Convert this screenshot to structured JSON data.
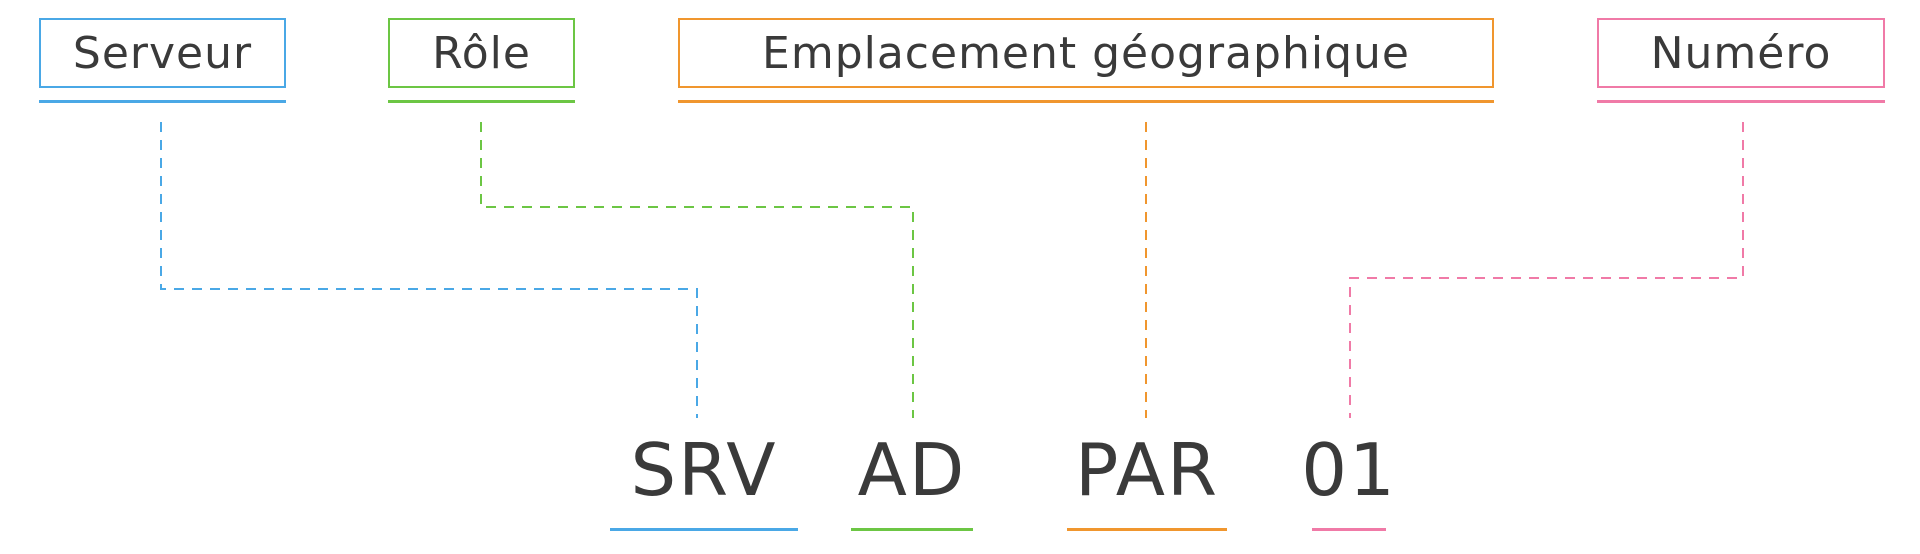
{
  "diagram": {
    "components": [
      {
        "id": "serveur",
        "label": "Serveur",
        "code": "SRV",
        "color": "#4aa8e6"
      },
      {
        "id": "role",
        "label": "Rôle",
        "code": "AD",
        "color": "#6cc644"
      },
      {
        "id": "emplacement",
        "label": "Emplacement géographique",
        "code": "PAR",
        "color": "#f0962e"
      },
      {
        "id": "numero",
        "label": "Numéro",
        "code": "01",
        "color": "#f07aa7"
      }
    ]
  }
}
